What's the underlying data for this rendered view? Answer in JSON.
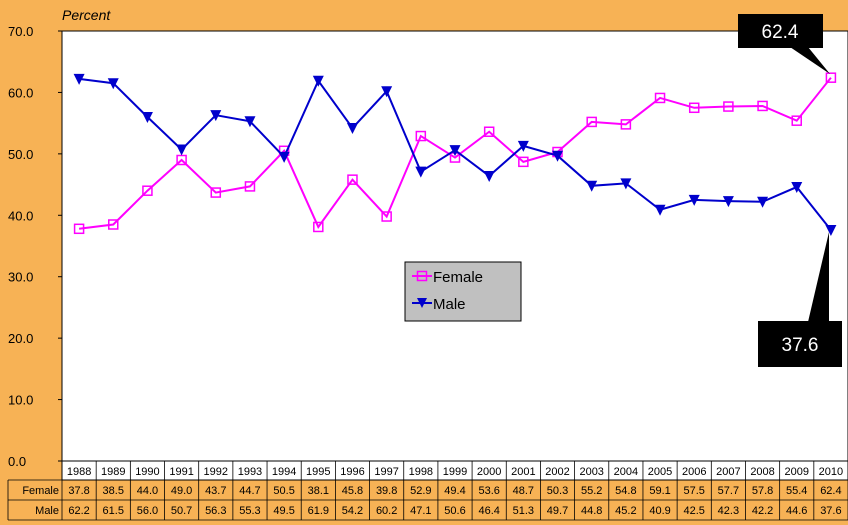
{
  "chart_data": {
    "type": "line",
    "ylabel": "Percent",
    "ylim": [
      0,
      70
    ],
    "yticks": [
      "0.0",
      "10.0",
      "20.0",
      "30.0",
      "40.0",
      "50.0",
      "60.0",
      "70.0"
    ],
    "categories": [
      "1988",
      "1989",
      "1990",
      "1991",
      "1992",
      "1993",
      "1994",
      "1995",
      "1996",
      "1997",
      "1998",
      "1999",
      "2000",
      "2001",
      "2002",
      "2003",
      "2004",
      "2005",
      "2006",
      "2007",
      "2008",
      "2009",
      "2010"
    ],
    "series": [
      {
        "name": "Female",
        "color": "#ff00ff",
        "marker": "open-square",
        "values": [
          37.8,
          38.5,
          44.0,
          49.0,
          43.7,
          44.7,
          50.5,
          38.1,
          45.8,
          39.8,
          52.9,
          49.4,
          53.6,
          48.7,
          50.3,
          55.2,
          54.8,
          59.1,
          57.5,
          57.7,
          57.8,
          55.4,
          62.4
        ],
        "labels": [
          "37.8",
          "38.5",
          "44.0",
          "49.0",
          "43.7",
          "44.7",
          "50.5",
          "38.1",
          "45.8",
          "39.8",
          "52.9",
          "49.4",
          "53.6",
          "48.7",
          "50.3",
          "55.2",
          "54.8",
          "59.1",
          "57.5",
          "57.7",
          "57.8",
          "55.4",
          "62.4"
        ]
      },
      {
        "name": "Male",
        "color": "#0000cc",
        "marker": "filled-triangle-down",
        "values": [
          62.2,
          61.5,
          56.0,
          50.7,
          56.3,
          55.3,
          49.5,
          61.9,
          54.2,
          60.2,
          47.1,
          50.6,
          46.4,
          51.3,
          49.7,
          44.8,
          45.2,
          40.9,
          42.5,
          42.3,
          42.2,
          44.6,
          37.6
        ],
        "labels": [
          "62.2",
          "61.5",
          "56.0",
          "50.7",
          "56.3",
          "55.3",
          "49.5",
          "61.9",
          "54.2",
          "60.2",
          "47.1",
          "50.6",
          "46.4",
          "51.3",
          "49.7",
          "44.8",
          "45.2",
          "40.9",
          "42.5",
          "42.3",
          "42.2",
          "44.6",
          "37.6"
        ]
      }
    ],
    "callouts": [
      "62.4",
      "37.6"
    ],
    "legend_position": "center",
    "grid": false
  }
}
